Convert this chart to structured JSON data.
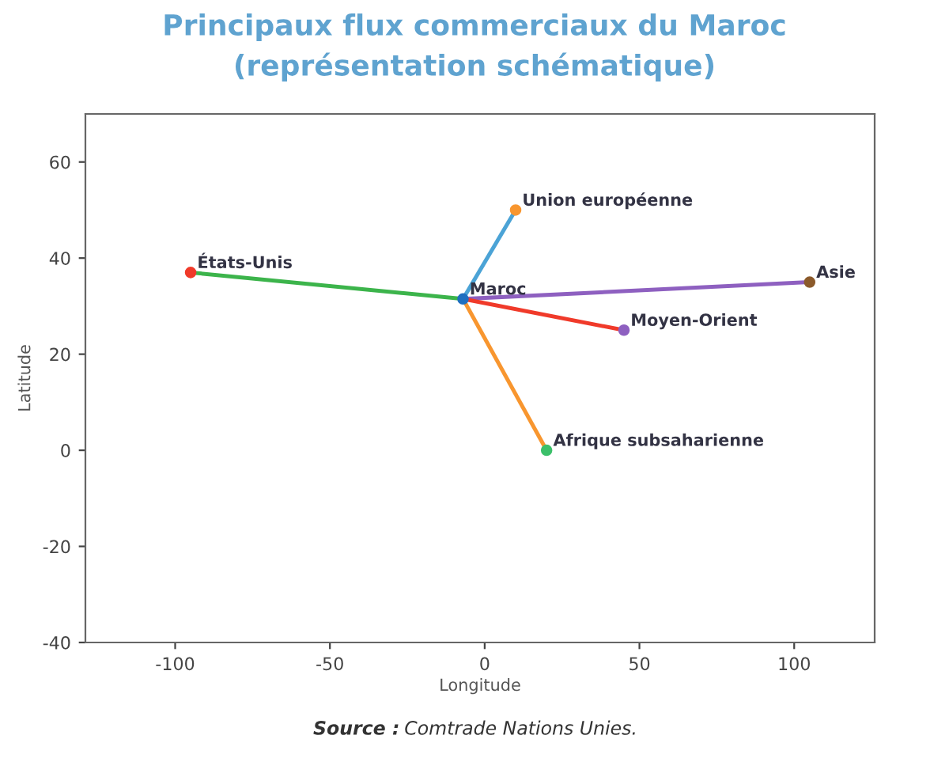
{
  "chart_data": {
    "type": "line",
    "title": "Principaux flux commerciaux du Maroc\n(représentation schématique)",
    "xlabel": "Longitude",
    "ylabel": "Latitude",
    "xlim": [
      -129,
      126
    ],
    "xticks": [
      -100,
      -50,
      0,
      50,
      100
    ],
    "ylim": [
      -40,
      70
    ],
    "yticks": [
      -40,
      -20,
      0,
      20,
      40,
      60
    ],
    "grid": false,
    "legend": false,
    "marker": "none",
    "line_style": "solid",
    "series": [
      {
        "color": "#4ba3d6",
        "x": [
          -7,
          10
        ],
        "values": [
          31.5,
          50
        ]
      },
      {
        "color": "#3cb44b",
        "x": [
          -7,
          -95
        ],
        "values": [
          31.5,
          37
        ]
      },
      {
        "color": "#8e60c0",
        "x": [
          -7,
          105
        ],
        "values": [
          31.5,
          35
        ]
      },
      {
        "color": "#f03a2a",
        "x": [
          -7,
          45
        ],
        "values": [
          31.5,
          25
        ]
      },
      {
        "color": "#f8962f",
        "x": [
          -7,
          20
        ],
        "values": [
          31.5,
          0
        ]
      },
      {
        "type": "scatter",
        "marker": "circle",
        "x": [
          -7,
          -95,
          10,
          105,
          45,
          20
        ],
        "values": [
          31.5,
          37,
          50,
          35,
          25,
          0
        ],
        "colors": [
          "#1f6fc0",
          "#f03a2a",
          "#f8962f",
          "#8b5a2b",
          "#8e60c0",
          "#3cc06a"
        ]
      }
    ],
    "annotations": [
      {
        "text": "Maroc",
        "x": -7,
        "y": 31.5
      },
      {
        "text": "États-Unis",
        "x": -95,
        "y": 37
      },
      {
        "text": "Union européenne",
        "x": 10,
        "y": 50
      },
      {
        "text": "Asie",
        "x": 105,
        "y": 35
      },
      {
        "text": "Moyen-Orient",
        "x": 45,
        "y": 25
      },
      {
        "text": "Afrique subsaharienne",
        "x": 20,
        "y": 0
      },
      "Source : Comtrade Nations Unies."
    ]
  }
}
